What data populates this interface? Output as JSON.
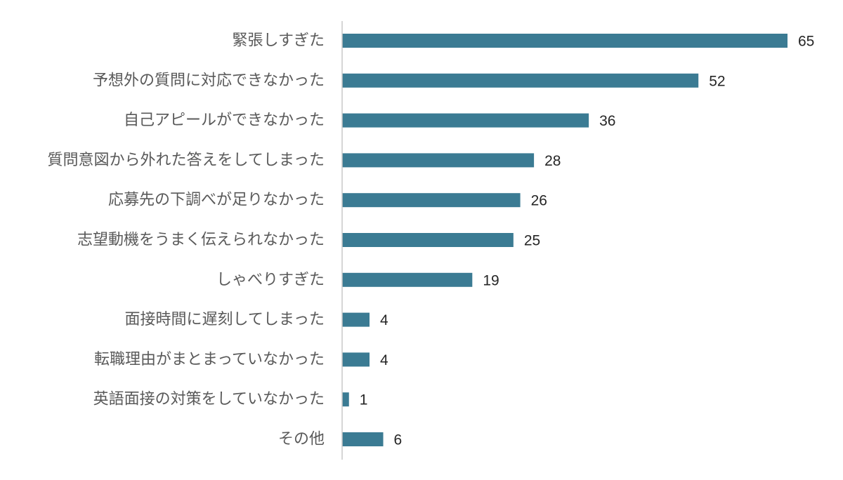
{
  "chart_data": {
    "type": "bar",
    "orientation": "horizontal",
    "categories": [
      "緊張しすぎた",
      "予想外の質問に対応できなかった",
      "自己アピールができなかった",
      "質問意図から外れた答えをしてしまった",
      "応募先の下調べが足りなかった",
      "志望動機をうまく伝えられなかった",
      "しゃべりすぎた",
      "面接時間に遅刻してしまった",
      "転職理由がまとまっていなかった",
      "英語面接の対策をしていなかった",
      "その他"
    ],
    "values": [
      65,
      52,
      36,
      28,
      26,
      25,
      19,
      4,
      4,
      1,
      6
    ],
    "value_labels": [
      "65",
      "52",
      "36",
      "28",
      "26",
      "25",
      "19",
      "4",
      "4",
      "1",
      "6"
    ],
    "xlim": [
      0,
      65
    ],
    "grid": false,
    "legend": "none",
    "bar_color": "#3b7b93",
    "axis_color": "#c8c8c8"
  }
}
